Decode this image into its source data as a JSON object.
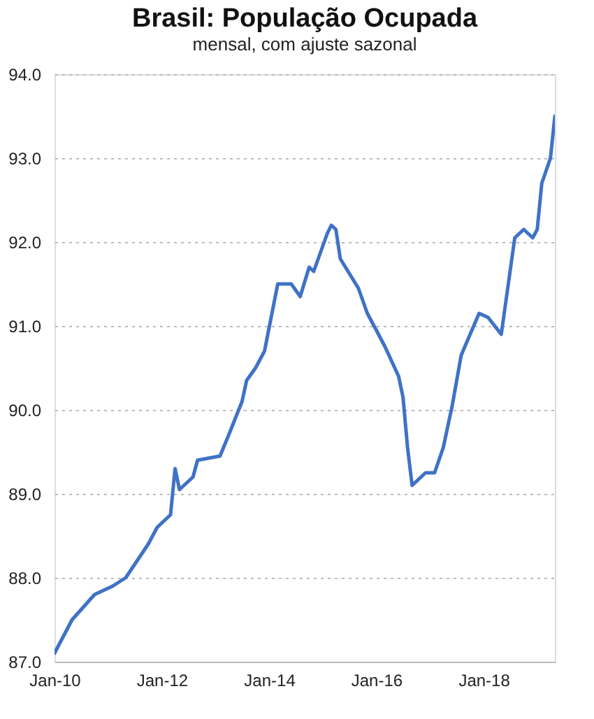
{
  "chart_data": {
    "type": "line",
    "title": "Brasil: População Ocupada",
    "subtitle": "mensal, com ajuste sazonal",
    "x": [
      "2010-01",
      "2010-05",
      "2010-10",
      "2011-02",
      "2011-05",
      "2011-10",
      "2011-12",
      "2012-03",
      "2012-04",
      "2012-05",
      "2012-08",
      "2012-09",
      "2013-02",
      "2013-04",
      "2013-07",
      "2013-08",
      "2013-10",
      "2013-12",
      "2014-03",
      "2014-06",
      "2014-08",
      "2014-10",
      "2014-11",
      "2015-02",
      "2015-03",
      "2015-04",
      "2015-05",
      "2015-09",
      "2015-11",
      "2016-01",
      "2016-03",
      "2016-06",
      "2016-07",
      "2016-08",
      "2016-09",
      "2016-12",
      "2017-02",
      "2017-04",
      "2017-06",
      "2017-08",
      "2017-12",
      "2018-02",
      "2018-05",
      "2018-08",
      "2018-10",
      "2018-12",
      "2019-01",
      "2019-02",
      "2019-04",
      "2019-05"
    ],
    "series": [
      {
        "color": "#3f72c6",
        "values": [
          87.1,
          87.5,
          87.8,
          87.9,
          88.0,
          88.4,
          88.6,
          88.75,
          89.3,
          89.05,
          89.2,
          89.4,
          89.45,
          89.7,
          90.1,
          90.35,
          90.5,
          90.7,
          91.5,
          91.5,
          91.35,
          91.7,
          91.65,
          92.1,
          92.2,
          92.15,
          91.8,
          91.45,
          91.15,
          90.95,
          90.75,
          90.4,
          90.15,
          89.55,
          89.1,
          89.25,
          89.25,
          89.55,
          90.05,
          90.65,
          91.15,
          91.1,
          90.9,
          92.05,
          92.15,
          92.05,
          92.15,
          92.7,
          93.0,
          93.5
        ]
      }
    ],
    "xlim": [
      "2010-01",
      "2019-05"
    ],
    "xticks": [
      {
        "value": "2010-01",
        "label": "Jan-10"
      },
      {
        "value": "2012-01",
        "label": "Jan-12"
      },
      {
        "value": "2014-01",
        "label": "Jan-14"
      },
      {
        "value": "2016-01",
        "label": "Jan-16"
      },
      {
        "value": "2018-01",
        "label": "Jan-18"
      }
    ],
    "ylim": [
      87.0,
      94.0
    ],
    "yticks": [
      {
        "value": 87,
        "label": "87.0"
      },
      {
        "value": 88,
        "label": "88.0"
      },
      {
        "value": 89,
        "label": "89.0"
      },
      {
        "value": 90,
        "label": "90.0"
      },
      {
        "value": 91,
        "label": "91.0"
      },
      {
        "value": 92,
        "label": "92.0"
      },
      {
        "value": 93,
        "label": "93.0"
      },
      {
        "value": 94,
        "label": "94.0"
      }
    ],
    "grid": "y",
    "marker": "none",
    "line_style": "solid"
  }
}
